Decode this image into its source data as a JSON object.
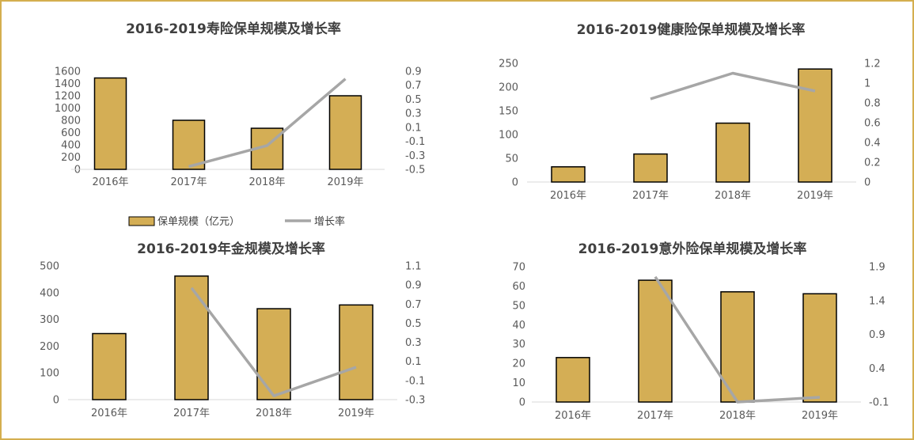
{
  "colors": {
    "bar_fill": "#d4ae55",
    "bar_stroke": "#000000",
    "line": "#a6a6a6",
    "frame": "#d4ae4e",
    "axis": "#d9d9d9"
  },
  "legend": {
    "bar_label": "保单规模（亿元）",
    "line_label": "增长率"
  },
  "chart_data": [
    {
      "type": "bar",
      "title": "2016-2019寿险保单规模及增长率",
      "categories": [
        "2016年",
        "2017年",
        "2018年",
        "2019年"
      ],
      "series": [
        {
          "name": "保单规模（亿元）",
          "type": "bar",
          "axis": "left",
          "values": [
            1490,
            800,
            670,
            1200
          ]
        },
        {
          "name": "增长率",
          "type": "line",
          "axis": "right",
          "values": [
            null,
            -0.46,
            -0.16,
            0.79
          ]
        }
      ],
      "ylim": [
        0,
        1600
      ],
      "y_ticks": [
        "0",
        "200",
        "400",
        "600",
        "800",
        "1000",
        "1200",
        "1400",
        "1600"
      ],
      "y2lim": [
        -0.5,
        0.9
      ],
      "y2_ticks": [
        "-0.5",
        "-0.3",
        "-0.1",
        "0.1",
        "0.3",
        "0.5",
        "0.7",
        "0.9"
      ],
      "legend": "bottom"
    },
    {
      "type": "bar",
      "title": "2016-2019健康险保单规模及增长率",
      "categories": [
        "2016年",
        "2017年",
        "2018年",
        "2019年"
      ],
      "series": [
        {
          "name": "保单规模（亿元）",
          "type": "bar",
          "axis": "left",
          "values": [
            32,
            59,
            124,
            238
          ]
        },
        {
          "name": "增长率",
          "type": "line",
          "axis": "right",
          "values": [
            null,
            0.84,
            1.1,
            0.92
          ]
        }
      ],
      "ylim": [
        0,
        250
      ],
      "y_ticks": [
        "0",
        "50",
        "100",
        "150",
        "200",
        "250"
      ],
      "y2lim": [
        0,
        1.2
      ],
      "y2_ticks": [
        "0",
        "0.2",
        "0.4",
        "0.6",
        "0.8",
        "1",
        "1.2"
      ]
    },
    {
      "type": "bar",
      "title": "2016-2019年金规模及增长率",
      "categories": [
        "2016年",
        "2017年",
        "2018年",
        "2019年"
      ],
      "series": [
        {
          "name": "保单规模（亿元）",
          "type": "bar",
          "axis": "left",
          "values": [
            247,
            462,
            340,
            354
          ]
        },
        {
          "name": "增长率",
          "type": "line",
          "axis": "right",
          "values": [
            null,
            0.87,
            -0.26,
            0.04
          ]
        }
      ],
      "ylim": [
        0,
        500
      ],
      "y_ticks": [
        "0",
        "100",
        "200",
        "300",
        "400",
        "500"
      ],
      "y2lim": [
        -0.3,
        1.1
      ],
      "y2_ticks": [
        "-0.3",
        "-0.1",
        "0.1",
        "0.3",
        "0.5",
        "0.7",
        "0.9",
        "1.1"
      ]
    },
    {
      "type": "bar",
      "title": "2016-2019意外险保单规模及增长率",
      "categories": [
        "2016年",
        "2017年",
        "2018年",
        "2019年"
      ],
      "series": [
        {
          "name": "保单规模（亿元）",
          "type": "bar",
          "axis": "left",
          "values": [
            23,
            63,
            57,
            56
          ]
        },
        {
          "name": "增长率",
          "type": "line",
          "axis": "right",
          "values": [
            null,
            1.75,
            -0.1,
            -0.03
          ]
        }
      ],
      "ylim": [
        0,
        70
      ],
      "y_ticks": [
        "0",
        "10",
        "20",
        "30",
        "40",
        "50",
        "60",
        "70"
      ],
      "y2lim": [
        -0.1,
        1.9
      ],
      "y2_ticks": [
        "-0.1",
        "0.4",
        "0.9",
        "1.4",
        "1.9"
      ]
    }
  ]
}
